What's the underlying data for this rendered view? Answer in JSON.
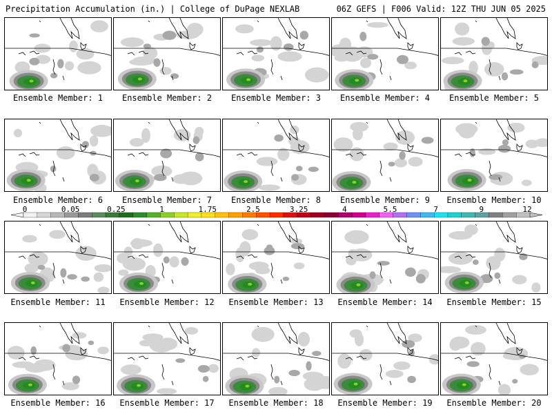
{
  "header": {
    "left": "Precipitation Accumulation (in.) | College of DuPage NEXLAB",
    "right": "06Z GEFS | F006 Valid: 12Z THU JUN 05 2025"
  },
  "panels": [
    {
      "caption": "Ensemble Member: 1",
      "member": 1
    },
    {
      "caption": "Ensemble Member: 2",
      "member": 2
    },
    {
      "caption": "Ensemble Member: 3",
      "member": 3
    },
    {
      "caption": "Ensemble Member: 4",
      "member": 4
    },
    {
      "caption": "Ensemble Member: 5",
      "member": 5
    },
    {
      "caption": "Ensemble Member: 6",
      "member": 6
    },
    {
      "caption": "Ensemble Member: 7",
      "member": 7
    },
    {
      "caption": "Ensemble Member: 8",
      "member": 8
    },
    {
      "caption": "Ensemble Member: 9",
      "member": 9
    },
    {
      "caption": "Ensemble Member: 10",
      "member": 10
    },
    {
      "caption": "Ensemble Member: 11",
      "member": 11
    },
    {
      "caption": "Ensemble Member: 12",
      "member": 12
    },
    {
      "caption": "Ensemble Member: 13",
      "member": 13
    },
    {
      "caption": "Ensemble Member: 14",
      "member": 14
    },
    {
      "caption": "Ensemble Member: 15",
      "member": 15
    },
    {
      "caption": "Ensemble Member: 16",
      "member": 16
    },
    {
      "caption": "Ensemble Member: 17",
      "member": 17
    },
    {
      "caption": "Ensemble Member: 18",
      "member": 18
    },
    {
      "caption": "Ensemble Member: 19",
      "member": 19
    },
    {
      "caption": "Ensemble Member: 20",
      "member": 20
    }
  ],
  "colorbar": {
    "labels": [
      "0",
      "0.05",
      "0.25",
      "1",
      "1.75",
      "2.5",
      "3.25",
      "4",
      "5.5",
      "7",
      "9",
      "12"
    ],
    "colors": [
      "#f2f2f2",
      "#d6d6d6",
      "#b8b8b8",
      "#9a9a9a",
      "#7c7c7c",
      "#5e8a5e",
      "#3a7a3a",
      "#1e6e1e",
      "#2e8b2e",
      "#56b02e",
      "#8ccf2a",
      "#c8e62a",
      "#f0f02a",
      "#ffe01a",
      "#ffc010",
      "#ffa000",
      "#ff7a00",
      "#ff5000",
      "#ff2a00",
      "#e01010",
      "#c00018",
      "#a00020",
      "#8a0030",
      "#b0006a",
      "#d0008a",
      "#e820c8",
      "#f060f0",
      "#b070f0",
      "#7090f0",
      "#40b8f0",
      "#20e0f0",
      "#20d0d0",
      "#40b8b0",
      "#60a0a0",
      "#808080",
      "#a0a0a0",
      "#c0c0c0"
    ]
  }
}
